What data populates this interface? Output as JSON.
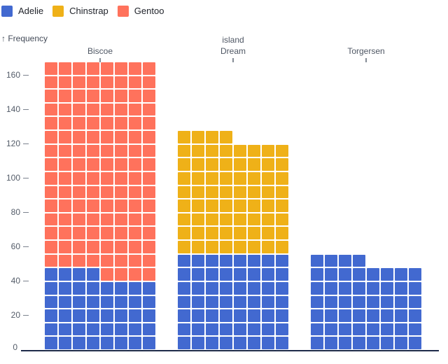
{
  "legend": {
    "items": [
      {
        "label": "Adelie",
        "color": "#4269d0"
      },
      {
        "label": "Chinstrap",
        "color": "#efb118"
      },
      {
        "label": "Gentoo",
        "color": "#ff725c"
      }
    ]
  },
  "y_axis": {
    "label": "↑ Frequency",
    "zero_label": "0"
  },
  "x_axis": {
    "label": "island",
    "ticks": [
      "Biscoe",
      "Dream",
      "Torgersen"
    ]
  },
  "chart_data": {
    "type": "bar",
    "subtype": "waffle-stacked",
    "title": "",
    "xlabel": "island",
    "ylabel": "Frequency",
    "categories": [
      "Biscoe",
      "Dream",
      "Torgersen"
    ],
    "series": [
      {
        "name": "Adelie",
        "color": "#4269d0",
        "values": [
          44,
          56,
          52
        ]
      },
      {
        "name": "Chinstrap",
        "color": "#efb118",
        "values": [
          0,
          68,
          0
        ]
      },
      {
        "name": "Gentoo",
        "color": "#ff725c",
        "values": [
          124,
          0,
          0
        ]
      }
    ],
    "unit": 1,
    "units_per_row": 8,
    "ylim": [
      0,
      168
    ],
    "yticks": [
      0,
      20,
      40,
      60,
      80,
      100,
      120,
      140,
      160
    ],
    "grid": false,
    "legend_position": "top-left"
  }
}
